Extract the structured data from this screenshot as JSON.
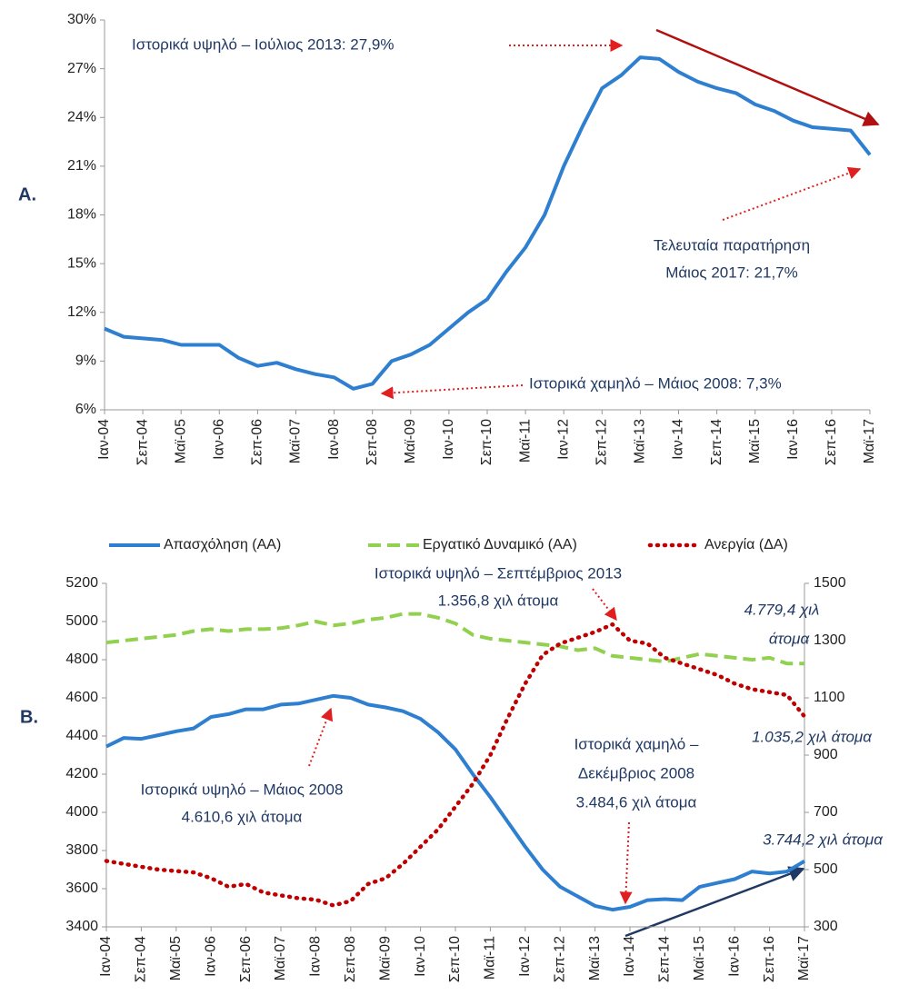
{
  "chart_data": [
    {
      "type": "line",
      "categories": [
        "Ιαν-04",
        null,
        "Σεπ-04",
        null,
        "Μαϊ-05",
        null,
        "Ιαν-06",
        null,
        "Σεπ-06",
        null,
        "Μαϊ-07",
        null,
        "Ιαν-08",
        null,
        "Σεπ-08",
        null,
        "Μαϊ-09",
        null,
        "Ιαν-10",
        null,
        "Σεπ-10",
        null,
        "Μαϊ-11",
        null,
        "Ιαν-12",
        null,
        "Σεπ-12",
        null,
        "Μαϊ-13",
        null,
        "Ιαν-14",
        null,
        "Σεπ-14",
        null,
        "Μαϊ-15",
        null,
        "Ιαν-16",
        null,
        "Σεπ-16",
        null,
        "Μαϊ-17"
      ],
      "values": [
        11.0,
        10.5,
        10.4,
        10.3,
        10.0,
        10.0,
        10.0,
        9.2,
        8.7,
        8.9,
        8.5,
        8.2,
        8.0,
        7.3,
        7.6,
        9.0,
        9.4,
        10.0,
        11.0,
        12.0,
        12.8,
        14.5,
        16.0,
        18.0,
        21.0,
        23.5,
        25.8,
        26.6,
        27.7,
        27.6,
        26.8,
        26.2,
        25.8,
        25.5,
        24.8,
        24.4,
        23.8,
        23.4,
        23.3,
        23.2,
        21.7
      ],
      "color": "#2e7fd0",
      "panel_label": "A.",
      "ylim": [
        6,
        30
      ],
      "yticks": [
        {
          "value": 6,
          "label": "6%"
        },
        {
          "value": 9,
          "label": "9%"
        },
        {
          "value": 12,
          "label": "12%"
        },
        {
          "value": 15,
          "label": "15%"
        },
        {
          "value": 18,
          "label": "18%"
        },
        {
          "value": 21,
          "label": "21%"
        },
        {
          "value": 24,
          "label": "24%"
        },
        {
          "value": 27,
          "label": "27%"
        },
        {
          "value": 30,
          "label": "30%"
        }
      ],
      "annotations": [
        "Ιστορικά υψηλό – Ιούλιος 2013: 27,9%",
        "Τελευταία παρατήρηση",
        "Μάιος 2017: 21,7%",
        "Ιστορικά χαμηλό – Μάιος 2008: 7,3%"
      ]
    },
    {
      "type": "line",
      "categories": [
        "Ιαν-04",
        null,
        "Σεπ-04",
        null,
        "Μαϊ-05",
        null,
        "Ιαν-06",
        null,
        "Σεπ-06",
        null,
        "Μαϊ-07",
        null,
        "Ιαν-08",
        null,
        "Σεπ-08",
        null,
        "Μαϊ-09",
        null,
        "Ιαν-10",
        null,
        "Σεπ-10",
        null,
        "Μαϊ-11",
        null,
        "Ιαν-12",
        null,
        "Σεπ-12",
        null,
        "Μαϊ-13",
        null,
        "Ιαν-14",
        null,
        "Σεπ-14",
        null,
        "Μαϊ-15",
        null,
        "Ιαν-16",
        null,
        "Σεπ-16",
        null,
        "Μαϊ-17"
      ],
      "panel_label": "B.",
      "series": [
        {
          "name": "Απασχόληση (ΑΑ)",
          "color": "#2e7fd0",
          "line_style": "solid",
          "values": [
            4345,
            4390,
            4385,
            4405,
            4425,
            4440,
            4500,
            4515,
            4540,
            4540,
            4565,
            4570,
            4590,
            4610.6,
            4600,
            4565,
            4550,
            4530,
            4490,
            4420,
            4330,
            4200,
            4080,
            3950,
            3820,
            3700,
            3610,
            3560,
            3510,
            3490,
            3505,
            3540,
            3545,
            3540,
            3610,
            3630,
            3650,
            3690,
            3680,
            3690,
            3744.2
          ]
        },
        {
          "name": "Εργατικό Δυναμικό (ΑΑ)",
          "color": "#92d050",
          "line_style": "dashed",
          "values": [
            4890,
            4900,
            4910,
            4920,
            4930,
            4950,
            4960,
            4950,
            4960,
            4960,
            4965,
            4980,
            5000,
            4980,
            4990,
            5010,
            5020,
            5040,
            5040,
            5020,
            4990,
            4930,
            4910,
            4900,
            4890,
            4880,
            4870,
            4850,
            4860,
            4820,
            4810,
            4800,
            4790,
            4810,
            4830,
            4820,
            4810,
            4800,
            4810,
            4780,
            4779.4
          ]
        },
        {
          "name": "Ανεργία (ΔΑ)",
          "color": "#c00000",
          "line_style": "dotted",
          "axis": "y2",
          "values": [
            530,
            520,
            510,
            500,
            495,
            490,
            470,
            440,
            450,
            420,
            410,
            400,
            395,
            375,
            390,
            450,
            470,
            520,
            580,
            640,
            720,
            800,
            900,
            1030,
            1150,
            1250,
            1290,
            1310,
            1330,
            1356.8,
            1300,
            1290,
            1240,
            1220,
            1200,
            1180,
            1150,
            1130,
            1120,
            1110,
            1035.2
          ]
        }
      ],
      "ylim": [
        3400,
        5200
      ],
      "yticks": [
        3400,
        3600,
        3800,
        4000,
        4200,
        4400,
        4600,
        4800,
        5000,
        5200
      ],
      "y2lim": [
        300,
        1500
      ],
      "y2ticks": [
        300,
        500,
        700,
        900,
        1100,
        1300,
        1500
      ],
      "legend": "top",
      "annotations": [
        "Ιστορικά υψηλό – Σεπτέμβριος 2013",
        "1.356,8 χιλ άτομα",
        "4.779,4 χιλ",
        "άτομα",
        "1.035,2 χιλ άτομα",
        "Ιστορικά υψηλό – Μάιος 2008",
        "4.610,6 χιλ άτομα",
        "Ιστορικά χαμηλό –",
        "Δεκέμβριος 2008",
        "3.484,6 χιλ άτομα",
        "3.744,2 χιλ άτομα"
      ]
    }
  ]
}
